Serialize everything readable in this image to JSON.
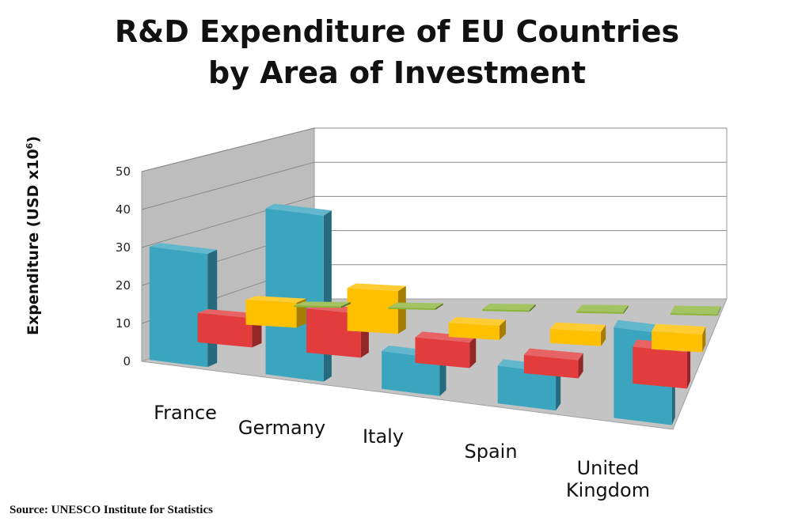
{
  "chart_data": {
    "type": "bar",
    "title_lines": [
      "R&D Expenditure of EU Countries",
      "by Area of Investment"
    ],
    "ylabel": "Expenditure (USD x10",
    "ylabel_sup": "6",
    "ylabel_close": ")",
    "categories": [
      "France",
      "Germany",
      "Italy",
      "Spain",
      "United Kingdom"
    ],
    "series": [
      {
        "values": [
          0.5,
          0.5,
          0.5,
          0.5,
          0.5
        ],
        "color": "#8DB43B"
      },
      {
        "values": [
          7,
          12,
          4,
          4,
          5
        ],
        "color": "#FFC000"
      },
      {
        "values": [
          8,
          12,
          7,
          5,
          10
        ],
        "color": "#E23C3C"
      },
      {
        "values": [
          30,
          44,
          10,
          10,
          24
        ],
        "color": "#3BA5C0"
      }
    ],
    "yticks": [
      0,
      10,
      20,
      30,
      40,
      50
    ],
    "ylim": [
      0,
      50
    ],
    "grid": true
  },
  "source": "Source: UNESCO Institute for Statistics"
}
